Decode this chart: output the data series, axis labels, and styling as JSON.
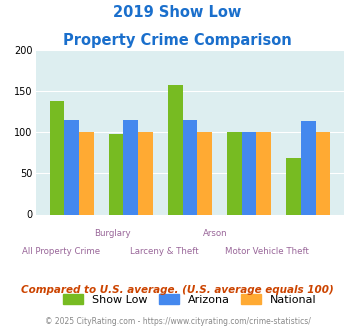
{
  "title_line1": "2019 Show Low",
  "title_line2": "Property Crime Comparison",
  "title_color": "#1a6fcc",
  "categories": [
    "All Property Crime",
    "Burglary",
    "Larceny & Theft",
    "Arson",
    "Motor Vehicle Theft"
  ],
  "top_labels": [
    "",
    "Burglary",
    "",
    "Arson",
    ""
  ],
  "bottom_labels": [
    "All Property Crime",
    "",
    "Larceny & Theft",
    "",
    "Motor Vehicle Theft"
  ],
  "show_low": [
    138,
    98,
    157,
    100,
    69
  ],
  "arizona": [
    115,
    115,
    115,
    100,
    113
  ],
  "national": [
    100,
    100,
    100,
    100,
    100
  ],
  "show_low_color": "#77bb22",
  "arizona_color": "#4488ee",
  "national_color": "#ffaa33",
  "bg_color": "#ddeef0",
  "ylim": [
    0,
    200
  ],
  "yticks": [
    0,
    50,
    100,
    150,
    200
  ],
  "bar_width": 0.25,
  "legend_labels": [
    "Show Low",
    "Arizona",
    "National"
  ],
  "footnote1": "Compared to U.S. average. (U.S. average equals 100)",
  "footnote2": "© 2025 CityRating.com - https://www.cityrating.com/crime-statistics/",
  "footnote1_color": "#cc4400",
  "footnote2_color": "#888888",
  "footnote1_fontsize": 7.5,
  "footnote2_fontsize": 5.5,
  "title_fontsize": 10.5
}
